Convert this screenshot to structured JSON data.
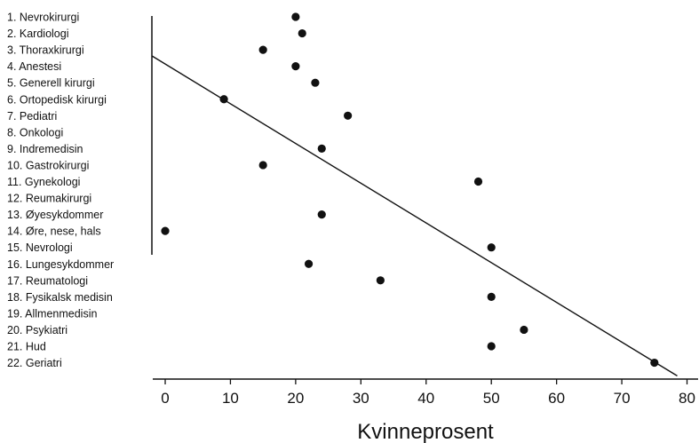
{
  "chart_data": {
    "type": "scatter",
    "title": "",
    "xlabel": "Kvinneprosent",
    "ylabel": "",
    "xlim": [
      -2,
      80
    ],
    "xticks": [
      0,
      10,
      20,
      30,
      40,
      50,
      60,
      70,
      80
    ],
    "grid": false,
    "legend": "none",
    "marker_color": "#111111",
    "categories": [
      "1. Nevrokirurgi",
      "2. Kardiologi",
      "3. Thoraxkirurgi",
      "4. Anestesi",
      "5. Generell kirurgi",
      "6. Ortopedisk kirurgi",
      "7. Pediatri",
      "8. Onkologi",
      "9. Indremedisin",
      "10. Gastrokirurgi",
      "11. Gynekologi",
      "12. Reumakirurgi",
      "13. Øyesykdommer",
      "14. Øre, nese, hals",
      "15. Nevrologi",
      "16. Lungesykdommer",
      "17. Reumatologi",
      "18. Fysikalsk medisin",
      "19. Allmenmedisin",
      "20. Psykiatri",
      "21. Hud",
      "22. Geriatri"
    ],
    "values": [
      20,
      21,
      15,
      20,
      23,
      9,
      28,
      null,
      24,
      15,
      48,
      null,
      24,
      0,
      50,
      22,
      33,
      50,
      null,
      55,
      50,
      75
    ],
    "trendline": {
      "x": [
        -2,
        78.5
      ],
      "y_rank": [
        3.38,
        22.8
      ]
    }
  }
}
